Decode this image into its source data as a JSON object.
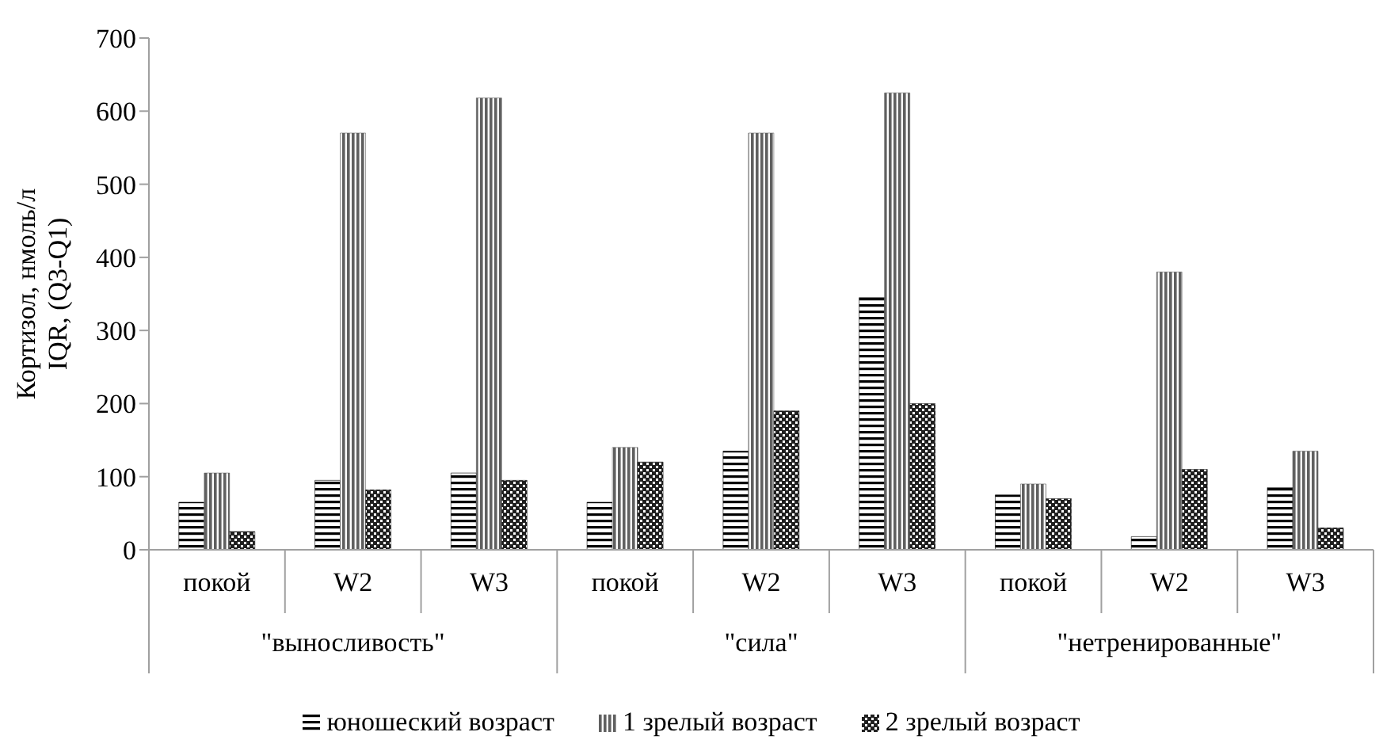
{
  "chart_data": {
    "type": "bar",
    "ylabel": "Кортизол, нмоль/л\nIQR, (Q3-Q1)",
    "categories": [
      "покой",
      "W2",
      "W3",
      "покой",
      "W2",
      "W3",
      "покой",
      "W2",
      "W3"
    ],
    "annotations": [
      "\"выносливость\"",
      "\"сила\"",
      "\"нетренированные\""
    ],
    "series": [
      {
        "name": "юношеский возраст",
        "color": "#000000",
        "values": [
          65,
          95,
          105,
          65,
          135,
          345,
          75,
          18,
          85
        ]
      },
      {
        "name": "1 зрелый возраст",
        "color": "#606060",
        "values": [
          105,
          570,
          618,
          140,
          570,
          625,
          90,
          380,
          135
        ]
      },
      {
        "name": "2 зрелый возраст",
        "color": "#202020",
        "values": [
          25,
          82,
          95,
          120,
          190,
          200,
          70,
          110,
          30
        ]
      }
    ],
    "ylim": [
      0,
      700
    ],
    "yticks": [
      0,
      100,
      200,
      300,
      400,
      500,
      600,
      700
    ],
    "grid": false,
    "legend": "bottom"
  }
}
